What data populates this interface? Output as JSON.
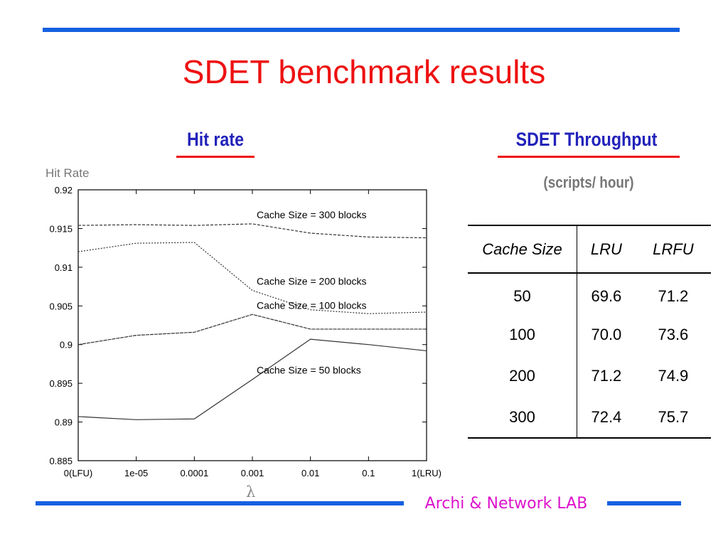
{
  "title": "SDET benchmark results",
  "left_panel": {
    "heading": "Hit rate",
    "ylabel": "Hit Rate",
    "xlabel": "λ"
  },
  "right_panel": {
    "heading": "SDET Throughput",
    "unit": "(scripts/ hour)",
    "table": {
      "headers": [
        "Cache Size",
        "LRU",
        "LRFU"
      ],
      "rows": [
        [
          "50",
          "69.6",
          "71.2"
        ],
        [
          "100",
          "70.0",
          "73.6"
        ],
        [
          "200",
          "71.2",
          "74.9"
        ],
        [
          "300",
          "72.4",
          "75.7"
        ]
      ]
    }
  },
  "footer": {
    "text": "Archi & Network LAB"
  },
  "colors": {
    "accent_blue": "#1560e0",
    "title_red": "#ee1111",
    "heading_blue": "#2222bb",
    "footer_magenta": "#dd11cc"
  },
  "chart_data": {
    "type": "line",
    "xlabel": "λ",
    "ylabel": "Hit Rate",
    "categories": [
      "0(LFU)",
      "1e-05",
      "0.0001",
      "0.001",
      "0.01",
      "0.1",
      "1(LRU)"
    ],
    "yticks": [
      "0.92",
      "0.915",
      "0.91",
      "0.905",
      "0.9",
      "0.895",
      "0.89",
      "0.885"
    ],
    "ylim": [
      0.885,
      0.92
    ],
    "grid": false,
    "series": [
      {
        "name": "Cache Size = 300 blocks",
        "values": [
          0.9154,
          0.9155,
          0.9154,
          0.9156,
          0.9144,
          0.9139,
          0.9138
        ]
      },
      {
        "name": "Cache Size = 200 blocks",
        "values": [
          0.912,
          0.9131,
          0.9132,
          0.907,
          0.9045,
          0.904,
          0.9042
        ]
      },
      {
        "name": "Cache Size = 100 blocks",
        "values": [
          0.9,
          0.9012,
          0.9016,
          0.9039,
          0.902,
          0.902,
          0.902
        ]
      },
      {
        "name": "Cache Size = 50 blocks",
        "values": [
          0.8907,
          0.8903,
          0.8904,
          0.8955,
          0.9007,
          0.9,
          0.8992
        ]
      }
    ],
    "series_label_anchor": [
      3,
      3,
      3,
      3
    ]
  }
}
